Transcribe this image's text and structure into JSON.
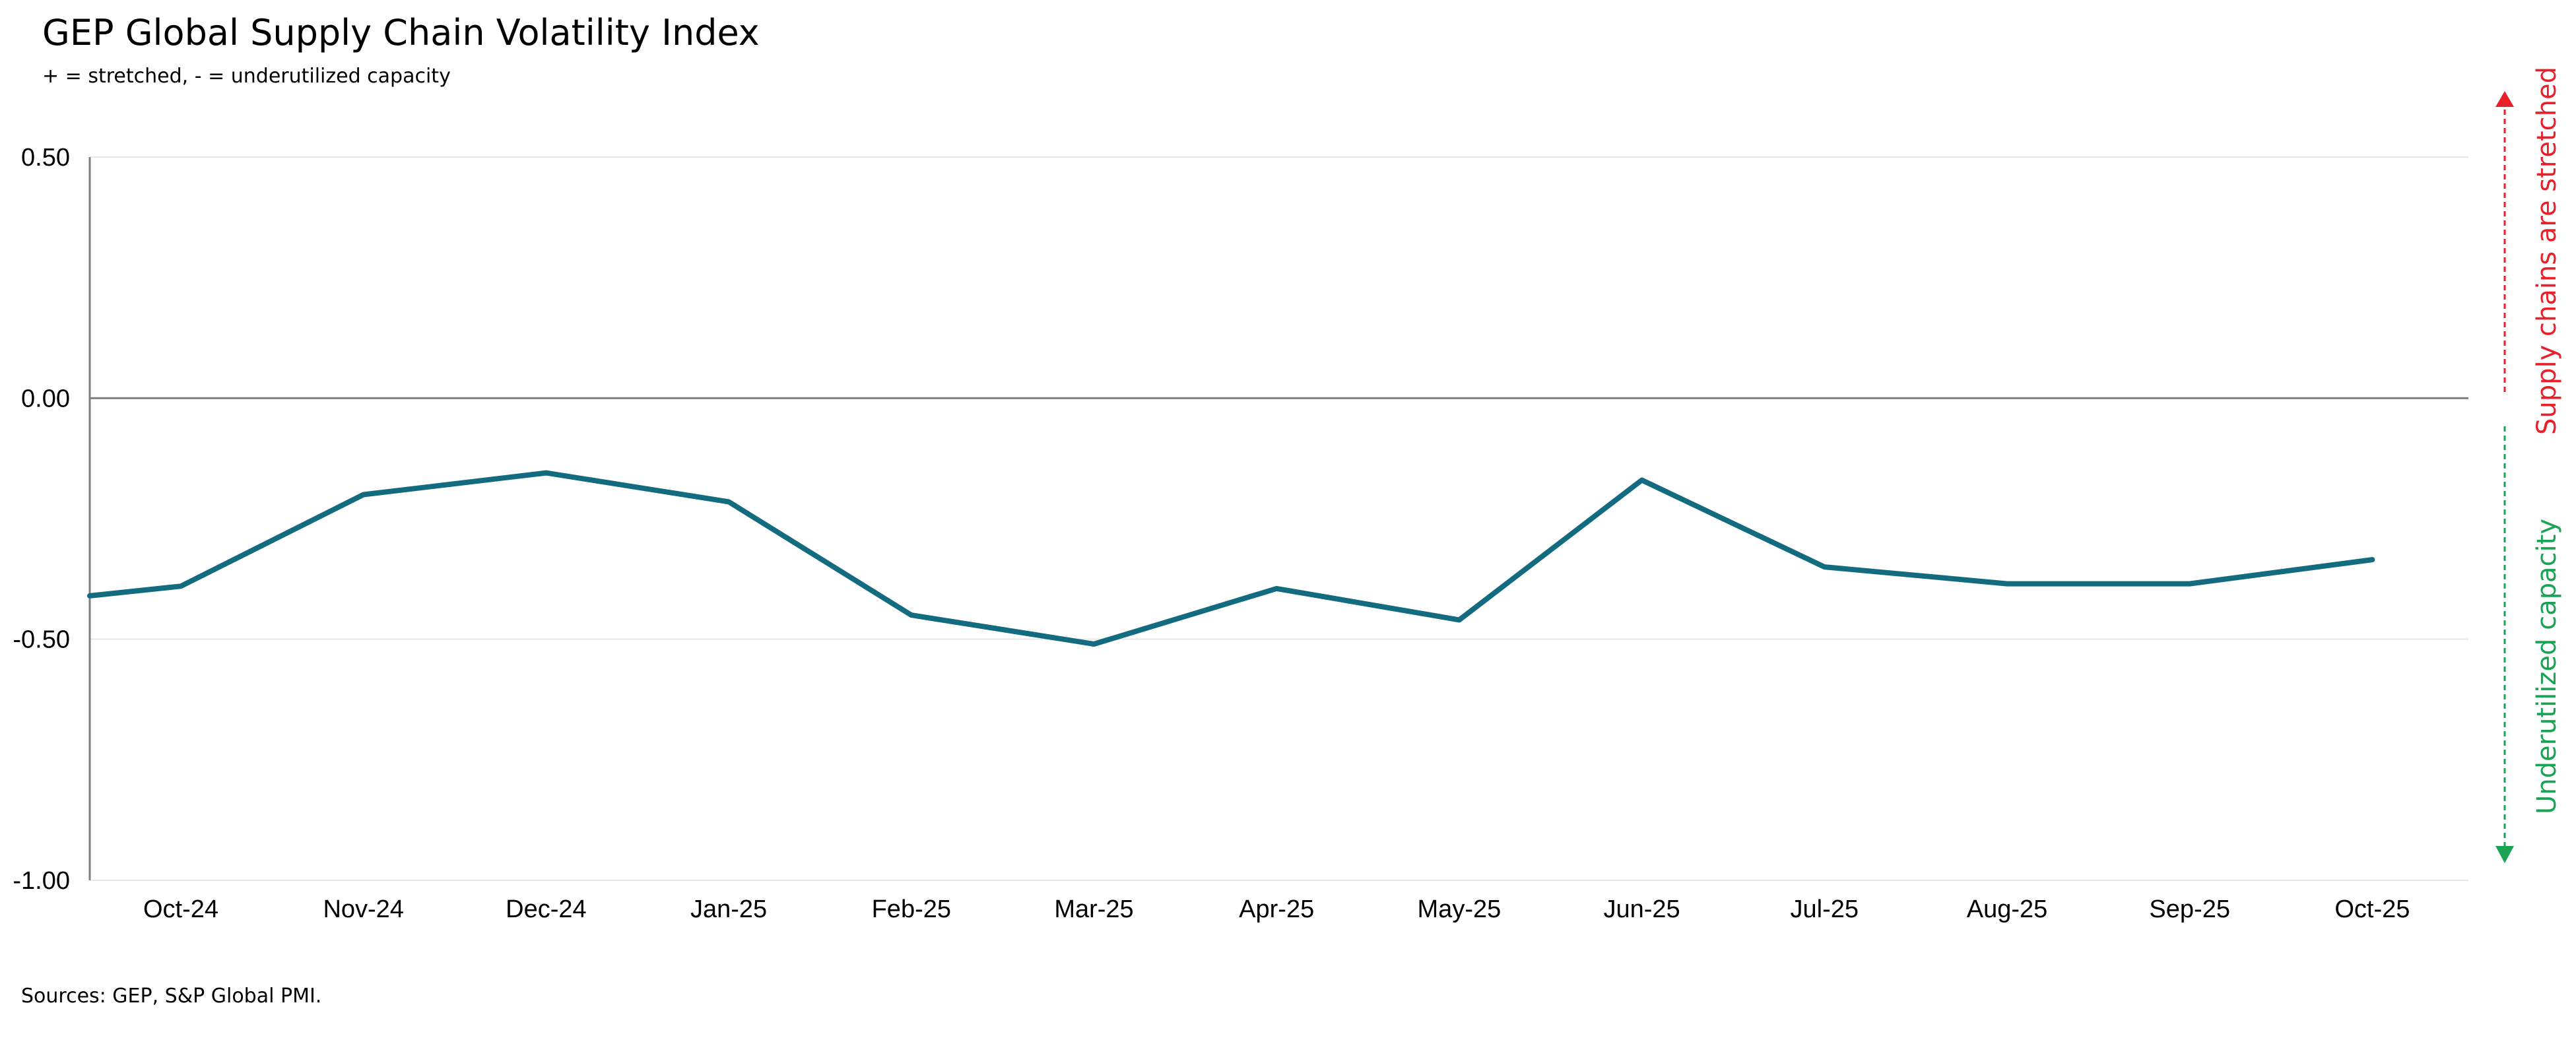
{
  "title": "GEP Global Supply Chain Volatility Index",
  "subtitle": "+ = stretched, - = underutilized capacity",
  "source": "Sources: GEP, S&P Global PMI.",
  "annotations": {
    "upper": "Supply chains are stretched",
    "lower": "Underutilized capacity",
    "upper_color": "#e8202a",
    "lower_color": "#1aa352"
  },
  "colors": {
    "line": "#136b80",
    "zero_line": "#808080",
    "grid": "#e8e8e8",
    "axis": "#808080"
  },
  "chart_data": {
    "type": "line",
    "title": "GEP Global Supply Chain Volatility Index",
    "subtitle": "+ = stretched, - = underutilized capacity",
    "categories": [
      "Oct-24",
      "Nov-24",
      "Dec-24",
      "Jan-25",
      "Feb-25",
      "Mar-25",
      "Apr-25",
      "May-25",
      "Jun-25",
      "Jul-25",
      "Aug-25",
      "Sep-25",
      "Oct-25"
    ],
    "series": [
      {
        "values": [
          -0.39,
          -0.2,
          -0.155,
          -0.215,
          -0.45,
          -0.51,
          -0.395,
          -0.46,
          -0.17,
          -0.35,
          -0.385,
          -0.385,
          -0.335
        ]
      }
    ],
    "series_start_value": -0.41,
    "ylim": [
      -1.0,
      0.5
    ],
    "yticks": [
      0.5,
      0.0,
      -0.5,
      -1.0
    ],
    "ytick_labels": [
      "0.50",
      "0.00",
      "-0.50",
      "-1.00"
    ],
    "grid": true,
    "legend": "none"
  }
}
